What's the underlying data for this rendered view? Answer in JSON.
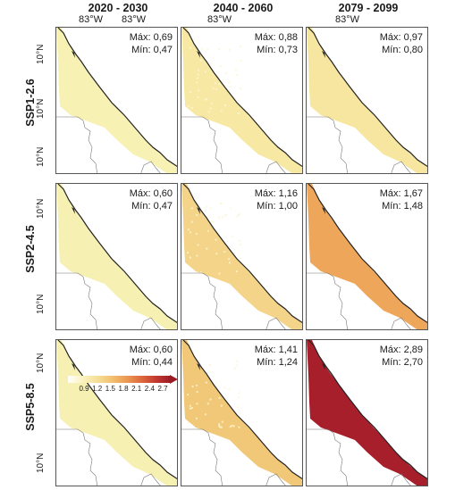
{
  "columns": [
    "2020 - 2030",
    "2040 - 2060",
    "2079 - 2099"
  ],
  "rows": [
    "SSP1-2.6",
    "SSP2-4.5",
    "SSP5-8.5"
  ],
  "lon_labels": [
    "83°W",
    "83°W",
    "83°W",
    "83°W"
  ],
  "lat_label": "10°N",
  "stat_labels": {
    "max": "Máx:",
    "min": "Mín:"
  },
  "panels": [
    [
      {
        "max": "0,69",
        "min": "0,47",
        "fill": "#f7f1b4",
        "speckle": false
      },
      {
        "max": "0,88",
        "min": "0,73",
        "fill": "#f7e9a3",
        "speckle": true
      },
      {
        "max": "0,97",
        "min": "0,80",
        "fill": "#f6e6a0",
        "speckle": false
      }
    ],
    [
      {
        "max": "0,60",
        "min": "0,47",
        "fill": "#f6f0b3",
        "speckle": false
      },
      {
        "max": "1,16",
        "min": "1,00",
        "fill": "#f3d489",
        "speckle": true
      },
      {
        "max": "1,67",
        "min": "1,48",
        "fill": "#eea75a",
        "speckle": false
      }
    ],
    [
      {
        "max": "0,60",
        "min": "0,44",
        "fill": "#f6f0b2",
        "speckle": false
      },
      {
        "max": "1,41",
        "min": "1,24",
        "fill": "#f1c877",
        "speckle": true
      },
      {
        "max": "2,89",
        "min": "2,70",
        "fill": "#a81f2c",
        "speckle": false
      }
    ]
  ],
  "legend": {
    "ticks": [
      "0.9",
      "1.2",
      "1.5",
      "1.8",
      "2.1",
      "2.4",
      "2.7"
    ],
    "colors": [
      "#ffffff",
      "#fbf3bf",
      "#f6df97",
      "#f2c071",
      "#eb9a52",
      "#dd6a3e",
      "#c23a30",
      "#9b1b25"
    ]
  }
}
